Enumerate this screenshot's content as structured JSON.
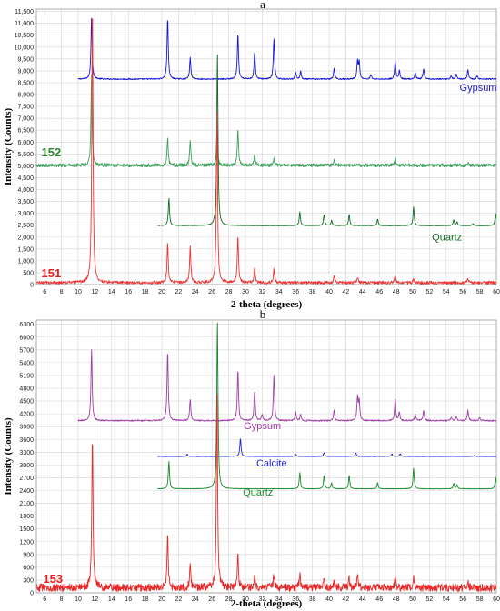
{
  "chart_data": [
    {
      "panel": "a",
      "type": "line",
      "xlabel": "2-theta (degrees)",
      "ylabel": "Intensity (Counts)",
      "xlim": [
        5,
        60
      ],
      "ylim": [
        0,
        11600
      ],
      "x_ticks": [
        6,
        8,
        10,
        12,
        14,
        16,
        18,
        20,
        22,
        24,
        26,
        28,
        30,
        32,
        34,
        36,
        38,
        40,
        42,
        44,
        46,
        48,
        50,
        52,
        54,
        56,
        58,
        60
      ],
      "y_ticks": [
        0,
        500,
        1000,
        1500,
        2000,
        2500,
        3000,
        3500,
        4000,
        4500,
        5000,
        5500,
        6000,
        6500,
        7000,
        7500,
        8000,
        8500,
        9000,
        9500,
        10000,
        10500,
        11000,
        11500
      ],
      "y_tick_labels": [
        "0",
        "500",
        "1,000",
        "1,500",
        "2,000",
        "2,500",
        "3,000",
        "3,500",
        "4,000",
        "4,500",
        "5,000",
        "5,500",
        "6,000",
        "6,500",
        "7,000",
        "7,500",
        "8,000",
        "8,500",
        "9,000",
        "9,500",
        "10,000",
        "10,500",
        "11,000",
        "11,500"
      ],
      "grid": true,
      "series": [
        {
          "label": "Gypsum",
          "color": "#1515d6",
          "label_color": "#1a1acc",
          "xrange": [
            10,
            60
          ],
          "baseline": 8650,
          "noise": 25,
          "peaks": [
            [
              11.6,
              2550
            ],
            [
              20.7,
              2600
            ],
            [
              23.4,
              900
            ],
            [
              29.1,
              1900
            ],
            [
              31.1,
              1150
            ],
            [
              33.4,
              1700
            ],
            [
              36.0,
              300
            ],
            [
              36.6,
              320
            ],
            [
              40.6,
              450
            ],
            [
              43.4,
              750
            ],
            [
              43.6,
              700
            ],
            [
              45.0,
              200
            ],
            [
              47.9,
              750
            ],
            [
              48.4,
              350
            ],
            [
              50.3,
              250
            ],
            [
              51.3,
              450
            ],
            [
              54.6,
              150
            ],
            [
              55.2,
              200
            ],
            [
              56.6,
              400
            ],
            [
              57.7,
              150
            ]
          ]
        },
        {
          "label": "152",
          "color": "#3aa05a",
          "label_color": "#2a8a2a",
          "xrange": [
            5,
            60
          ],
          "baseline": 5020,
          "noise": 70,
          "peaks": [
            [
              11.6,
              3800
            ],
            [
              20.7,
              1150
            ],
            [
              23.4,
              1050
            ],
            [
              26.6,
              1300
            ],
            [
              29.1,
              1500
            ],
            [
              31.1,
              450
            ],
            [
              33.4,
              250
            ],
            [
              40.6,
              250
            ],
            [
              47.9,
              300
            ],
            [
              56.6,
              150
            ]
          ]
        },
        {
          "label": "Quartz",
          "color": "#0e6b1e",
          "label_color": "#0e6b1e",
          "xrange": [
            19.5,
            60
          ],
          "baseline": 2480,
          "noise": 10,
          "peaks": [
            [
              20.85,
              1150
            ],
            [
              26.65,
              7300
            ],
            [
              36.5,
              580
            ],
            [
              39.4,
              480
            ],
            [
              40.3,
              220
            ],
            [
              42.4,
              480
            ],
            [
              45.8,
              280
            ],
            [
              50.1,
              780
            ],
            [
              54.9,
              250
            ],
            [
              55.3,
              150
            ],
            [
              57.2,
              90
            ],
            [
              59.9,
              500
            ]
          ]
        },
        {
          "label": "151",
          "color": "#f03434",
          "label_color": "#e82020",
          "xrange": [
            5,
            60
          ],
          "baseline": 80,
          "noise": 60,
          "peaks": [
            [
              11.7,
              11700
            ],
            [
              20.7,
              1700
            ],
            [
              23.4,
              1500
            ],
            [
              26.6,
              7200
            ],
            [
              29.1,
              2000
            ],
            [
              31.1,
              600
            ],
            [
              33.4,
              550
            ],
            [
              40.6,
              300
            ],
            [
              43.4,
              250
            ],
            [
              47.9,
              280
            ],
            [
              50.1,
              150
            ],
            [
              56.6,
              200
            ]
          ]
        }
      ]
    },
    {
      "panel": "b",
      "type": "line",
      "xlabel": "2-theta (degrees)",
      "ylabel": "Intensity (Counts)",
      "xlim": [
        5,
        60
      ],
      "ylim": [
        0,
        6400
      ],
      "x_ticks": [
        6,
        8,
        10,
        12,
        14,
        16,
        18,
        20,
        22,
        24,
        26,
        28,
        30,
        32,
        34,
        36,
        38,
        40,
        42,
        44,
        46,
        48,
        50,
        52,
        54,
        56,
        58,
        60
      ],
      "y_ticks": [
        0,
        300,
        600,
        900,
        1200,
        1500,
        1800,
        2100,
        2400,
        2700,
        3000,
        3300,
        3600,
        3900,
        4200,
        4500,
        4800,
        5100,
        5400,
        5700,
        6000,
        6300
      ],
      "y_tick_labels": [
        "0",
        "300",
        "600",
        "900",
        "1200",
        "1500",
        "1800",
        "2100",
        "2400",
        "2700",
        "3000",
        "3300",
        "3600",
        "3900",
        "4200",
        "4500",
        "4800",
        "5100",
        "5400",
        "5700",
        "6000",
        "6300"
      ],
      "grid": true,
      "series": [
        {
          "label": "Gypsum",
          "color": "#a03ca8",
          "label_color": "#a03ca8",
          "xrange": [
            10,
            60
          ],
          "baseline": 4040,
          "noise": 15,
          "peaks": [
            [
              11.6,
              1650
            ],
            [
              20.7,
              1640
            ],
            [
              23.4,
              500
            ],
            [
              29.1,
              1200
            ],
            [
              31.1,
              700
            ],
            [
              32.0,
              150
            ],
            [
              33.4,
              1050
            ],
            [
              36.0,
              200
            ],
            [
              36.6,
              150
            ],
            [
              40.6,
              250
            ],
            [
              43.4,
              550
            ],
            [
              43.6,
              450
            ],
            [
              47.9,
              500
            ],
            [
              48.4,
              200
            ],
            [
              50.3,
              150
            ],
            [
              51.3,
              250
            ],
            [
              54.6,
              80
            ],
            [
              55.2,
              100
            ],
            [
              56.6,
              250
            ],
            [
              58.0,
              80
            ]
          ]
        },
        {
          "label": "Calcite",
          "color": "#2424e0",
          "label_color": "#2424e0",
          "xrange": [
            19.5,
            60
          ],
          "baseline": 3200,
          "noise": 5,
          "peaks": [
            [
              23.05,
              55
            ],
            [
              29.4,
              430
            ],
            [
              36.0,
              60
            ],
            [
              39.4,
              90
            ],
            [
              43.2,
              85
            ],
            [
              47.5,
              65
            ],
            [
              48.5,
              65
            ],
            [
              57.4,
              30
            ]
          ]
        },
        {
          "label": "Quartz",
          "color": "#178a2a",
          "label_color": "#178a2a",
          "xrange": [
            19.5,
            60
          ],
          "baseline": 2440,
          "noise": 6,
          "peaks": [
            [
              20.85,
              650
            ],
            [
              26.65,
              3950
            ],
            [
              36.5,
              380
            ],
            [
              39.4,
              320
            ],
            [
              40.3,
              140
            ],
            [
              42.4,
              320
            ],
            [
              45.8,
              150
            ],
            [
              50.1,
              480
            ],
            [
              54.9,
              130
            ],
            [
              55.3,
              90
            ],
            [
              59.9,
              260
            ]
          ]
        },
        {
          "label": "153",
          "color": "#e82828",
          "label_color": "#e82020",
          "xrange": [
            5,
            60
          ],
          "baseline": 120,
          "noise": 90,
          "peaks": [
            [
              11.7,
              3600
            ],
            [
              20.7,
              1250
            ],
            [
              23.4,
              500
            ],
            [
              26.6,
              4450
            ],
            [
              29.1,
              750
            ],
            [
              31.1,
              300
            ],
            [
              33.4,
              300
            ],
            [
              36.5,
              300
            ],
            [
              39.4,
              200
            ],
            [
              40.6,
              150
            ],
            [
              42.4,
              200
            ],
            [
              43.4,
              280
            ],
            [
              47.9,
              300
            ],
            [
              50.1,
              250
            ],
            [
              56.6,
              150
            ]
          ]
        }
      ]
    }
  ]
}
